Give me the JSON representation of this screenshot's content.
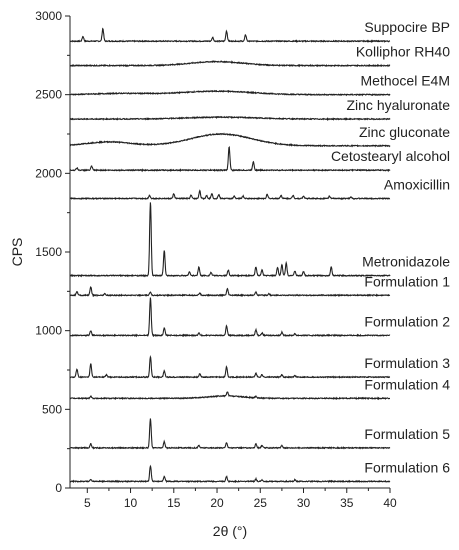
{
  "chart_data": {
    "type": "line",
    "title": "",
    "xlabel": "2θ (°)",
    "ylabel": "CPS",
    "xlim": [
      3,
      40
    ],
    "ylim": [
      0,
      3000
    ],
    "xticks": [
      5,
      10,
      15,
      20,
      25,
      30,
      35,
      40
    ],
    "yticks": [
      0,
      500,
      1000,
      1500,
      2000,
      2500,
      3000
    ],
    "grid": false,
    "legend": "inline labels above each trace (right side)",
    "line_color": "#222222",
    "series": [
      {
        "name": "Suppocire BP",
        "baseline": 2840,
        "peaks": [
          [
            4.5,
            30
          ],
          [
            6.8,
            80
          ],
          [
            19.5,
            25
          ],
          [
            21.1,
            65
          ],
          [
            23.3,
            40
          ]
        ],
        "humps": []
      },
      {
        "name": "Kolliphor RH40",
        "baseline": 2685,
        "peaks": [],
        "humps": [
          [
            20,
            25,
            3
          ]
        ]
      },
      {
        "name": "Methocel E4M",
        "baseline": 2500,
        "peaks": [],
        "humps": [
          [
            9,
            8,
            3
          ],
          [
            20,
            22,
            4
          ]
        ]
      },
      {
        "name": "Zinc hyaluronate",
        "baseline": 2345,
        "peaks": [],
        "humps": [
          [
            20.5,
            12,
            4
          ]
        ]
      },
      {
        "name": "Zinc gluconate",
        "baseline": 2175,
        "peaks": [],
        "humps": [
          [
            7.5,
            25,
            2.5
          ],
          [
            20.5,
            75,
            3.5
          ]
        ]
      },
      {
        "name": "Cetostearyl alcohol",
        "baseline": 2020,
        "peaks": [
          [
            3.8,
            15
          ],
          [
            5.5,
            25
          ],
          [
            21.4,
            150
          ],
          [
            24.2,
            55
          ]
        ],
        "humps": []
      },
      {
        "name": "Amoxicillin",
        "baseline": 1840,
        "peaks": [
          [
            12.2,
            20
          ],
          [
            15.0,
            30
          ],
          [
            17.0,
            20
          ],
          [
            18.0,
            50
          ],
          [
            18.8,
            20
          ],
          [
            19.4,
            30
          ],
          [
            20.2,
            25
          ],
          [
            22.0,
            15
          ],
          [
            23.0,
            15
          ],
          [
            25.8,
            25
          ],
          [
            27.4,
            20
          ],
          [
            28.8,
            20
          ],
          [
            30.0,
            15
          ],
          [
            33.0,
            15
          ],
          [
            35.5,
            10
          ]
        ],
        "humps": []
      },
      {
        "name": "Metronidazole",
        "baseline": 1350,
        "peaks": [
          [
            12.3,
            470
          ],
          [
            13.9,
            160
          ],
          [
            16.8,
            25
          ],
          [
            17.9,
            55
          ],
          [
            19.3,
            20
          ],
          [
            21.3,
            35
          ],
          [
            24.5,
            55
          ],
          [
            25.2,
            35
          ],
          [
            27.0,
            50
          ],
          [
            27.5,
            70
          ],
          [
            28.0,
            80
          ],
          [
            29.0,
            30
          ],
          [
            30.0,
            25
          ],
          [
            33.2,
            55
          ]
        ],
        "humps": []
      },
      {
        "name": "Formulation 1",
        "baseline": 1225,
        "peaks": [
          [
            3.8,
            25
          ],
          [
            5.4,
            55
          ],
          [
            7.0,
            10
          ],
          [
            12.3,
            20
          ],
          [
            18.0,
            15
          ],
          [
            21.2,
            40
          ],
          [
            24.5,
            20
          ],
          [
            26.0,
            10
          ]
        ],
        "humps": []
      },
      {
        "name": "Formulation 2",
        "baseline": 970,
        "peaks": [
          [
            5.4,
            30
          ],
          [
            12.3,
            240
          ],
          [
            13.9,
            50
          ],
          [
            17.9,
            15
          ],
          [
            21.1,
            60
          ],
          [
            24.5,
            35
          ],
          [
            25.2,
            15
          ],
          [
            27.5,
            20
          ],
          [
            29.0,
            10
          ]
        ],
        "humps": []
      },
      {
        "name": "Formulation 3",
        "baseline": 705,
        "peaks": [
          [
            3.8,
            50
          ],
          [
            5.4,
            85
          ],
          [
            7.2,
            15
          ],
          [
            12.3,
            130
          ],
          [
            13.9,
            40
          ],
          [
            18.0,
            20
          ],
          [
            21.1,
            65
          ],
          [
            24.5,
            25
          ],
          [
            25.2,
            15
          ],
          [
            27.5,
            15
          ],
          [
            29.0,
            10
          ]
        ],
        "humps": []
      },
      {
        "name": "Formulation 4",
        "baseline": 570,
        "peaks": [
          [
            5.4,
            15
          ],
          [
            21.2,
            25
          ],
          [
            24.5,
            10
          ]
        ],
        "humps": [
          [
            21,
            15,
            2
          ]
        ]
      },
      {
        "name": "Formulation 5",
        "baseline": 255,
        "peaks": [
          [
            5.4,
            25
          ],
          [
            12.3,
            185
          ],
          [
            13.9,
            40
          ],
          [
            17.9,
            15
          ],
          [
            21.1,
            35
          ],
          [
            24.5,
            25
          ],
          [
            25.2,
            15
          ],
          [
            27.5,
            15
          ]
        ],
        "humps": []
      },
      {
        "name": "Formulation 6",
        "baseline": 42,
        "peaks": [
          [
            5.4,
            15
          ],
          [
            12.3,
            100
          ],
          [
            13.9,
            30
          ],
          [
            21.1,
            30
          ],
          [
            24.5,
            15
          ],
          [
            25.2,
            10
          ],
          [
            29.0,
            10
          ]
        ],
        "humps": []
      }
    ]
  }
}
